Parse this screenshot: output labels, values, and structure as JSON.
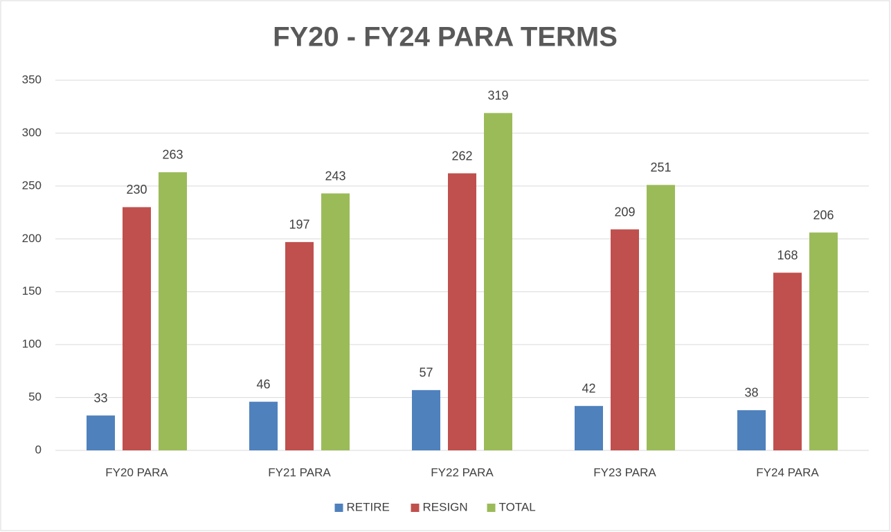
{
  "chart_data": {
    "type": "bar",
    "title": "FY20 - FY24 PARA TERMS",
    "categories": [
      "FY20 PARA",
      "FY21 PARA",
      "FY22 PARA",
      "FY23 PARA",
      "FY24 PARA"
    ],
    "series": [
      {
        "name": "RETIRE",
        "color": "#4f81bd",
        "values": [
          33,
          46,
          57,
          42,
          38
        ]
      },
      {
        "name": "RESIGN",
        "color": "#c0504d",
        "values": [
          230,
          197,
          262,
          209,
          168
        ]
      },
      {
        "name": "TOTAL",
        "color": "#9bbb59",
        "values": [
          263,
          243,
          319,
          251,
          206
        ]
      }
    ],
    "ylim": [
      0,
      350
    ],
    "yticks": [
      0,
      50,
      100,
      150,
      200,
      250,
      300,
      350
    ],
    "grid": true,
    "legend": "bottom"
  }
}
